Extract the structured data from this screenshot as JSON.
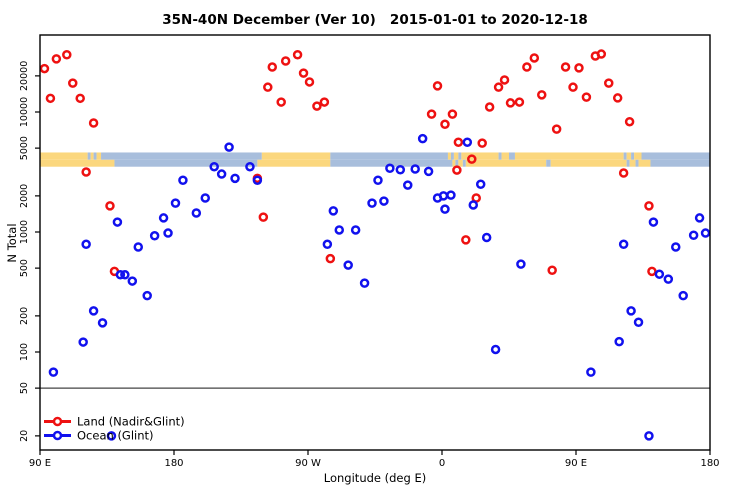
{
  "chart_data": {
    "type": "scatter",
    "title": "35N-40N December (Ver 10)   2015-01-01 to 2020-12-18",
    "xlabel": "Longitude (deg E)",
    "ylabel": "N Total",
    "x_axis": {
      "min": 90,
      "max": 540,
      "ticks": [
        {
          "value": 90,
          "label": "90 E"
        },
        {
          "value": 180,
          "label": "180"
        },
        {
          "value": 270,
          "label": "90 W"
        },
        {
          "value": 360,
          "label": "0"
        },
        {
          "value": 450,
          "label": "90 E"
        },
        {
          "value": 540,
          "label": "180"
        }
      ]
    },
    "y_axis": {
      "scale": "log",
      "ticks": [
        20,
        50,
        100,
        200,
        500,
        1000,
        2000,
        5000,
        10000,
        20000
      ],
      "min": 15,
      "max": 44000
    },
    "threshold_value": 50,
    "grid": "off",
    "legend_position": "bottom-left-inside",
    "legend": [
      {
        "label": "Land (Nadir&Glint)",
        "color": "#ee1111"
      },
      {
        "label": "Ocean (Glint)",
        "color": "#1111ee"
      }
    ],
    "map_band": {
      "land_color": "#fbd77e",
      "ocean_color": "#a8bedc",
      "value_top": 4600,
      "value_mid": 4000,
      "value_bottom": 3500,
      "rows": [
        {
          "segments": [
            [
              "L",
              90,
              122
            ],
            [
              "O",
              122,
              124
            ],
            [
              "L",
              124,
              126
            ],
            [
              "O",
              126,
              128
            ],
            [
              "L",
              128,
              131
            ],
            [
              "O",
              131,
              239
            ],
            [
              "L",
              239,
              285
            ],
            [
              "O",
              285,
              364
            ],
            [
              "L",
              364,
              366
            ],
            [
              "O",
              366,
              368
            ],
            [
              "L",
              368,
              371
            ],
            [
              "O",
              371,
              373
            ],
            [
              "L",
              373,
              398
            ],
            [
              "O",
              398,
              400
            ],
            [
              "L",
              400,
              405
            ],
            [
              "O",
              405,
              409
            ],
            [
              "L",
              409,
              482
            ],
            [
              "O",
              482,
              484
            ],
            [
              "L",
              484,
              487
            ],
            [
              "O",
              487,
              489
            ],
            [
              "L",
              489,
              494
            ],
            [
              "O",
              494,
              540
            ]
          ]
        },
        {
          "segments": [
            [
              "L",
              90,
              140
            ],
            [
              "O",
              140,
              236
            ],
            [
              "L",
              236,
              285
            ],
            [
              "O",
              285,
              367
            ],
            [
              "L",
              367,
              369
            ],
            [
              "O",
              369,
              371
            ],
            [
              "L",
              371,
              374
            ],
            [
              "O",
              374,
              376
            ],
            [
              "L",
              376,
              430
            ],
            [
              "O",
              430,
              433
            ],
            [
              "L",
              433,
              484
            ],
            [
              "O",
              484,
              486
            ],
            [
              "L",
              486,
              490
            ],
            [
              "O",
              490,
              492
            ],
            [
              "L",
              492,
              500
            ],
            [
              "O",
              500,
              540
            ]
          ]
        }
      ]
    },
    "series": [
      {
        "name": "Land (Nadir&Glint)",
        "color": "#ee1111",
        "points": [
          [
            93,
            23000
          ],
          [
            101,
            27700
          ],
          [
            108,
            30000
          ],
          [
            112,
            17400
          ],
          [
            97,
            13000
          ],
          [
            117,
            13000
          ],
          [
            126,
            8100
          ],
          [
            121,
            3160
          ],
          [
            137,
            1650
          ],
          [
            140,
            470
          ],
          [
            243,
            16100
          ],
          [
            246,
            23700
          ],
          [
            255,
            26600
          ],
          [
            263,
            30000
          ],
          [
            267,
            21100
          ],
          [
            271,
            17800
          ],
          [
            252,
            12100
          ],
          [
            276,
            11200
          ],
          [
            281,
            12100
          ],
          [
            236,
            2800
          ],
          [
            240,
            1330
          ],
          [
            285,
            600
          ],
          [
            353,
            9600
          ],
          [
            357,
            16500
          ],
          [
            362,
            7900
          ],
          [
            367,
            9600
          ],
          [
            370,
            3280
          ],
          [
            371,
            5600
          ],
          [
            376,
            860
          ],
          [
            380,
            4050
          ],
          [
            383,
            1920
          ],
          [
            387,
            5500
          ],
          [
            392,
            11000
          ],
          [
            398,
            16100
          ],
          [
            402,
            18500
          ],
          [
            406,
            11900
          ],
          [
            412,
            12100
          ],
          [
            417,
            23700
          ],
          [
            422,
            28200
          ],
          [
            427,
            13900
          ],
          [
            434,
            480
          ],
          [
            437,
            7200
          ],
          [
            443,
            23700
          ],
          [
            448,
            16100
          ],
          [
            452,
            23300
          ],
          [
            457,
            13300
          ],
          [
            463,
            29300
          ],
          [
            467,
            30400
          ],
          [
            472,
            17400
          ],
          [
            478,
            13100
          ],
          [
            482,
            3100
          ],
          [
            486,
            8300
          ],
          [
            499,
            1650
          ],
          [
            501,
            470
          ]
        ]
      },
      {
        "name": "Ocean (Glint)",
        "color": "#1111ee",
        "points": [
          [
            99,
            68
          ],
          [
            119,
            121
          ],
          [
            121,
            790
          ],
          [
            126,
            220
          ],
          [
            132,
            175
          ],
          [
            138,
            20
          ],
          [
            142,
            1210
          ],
          [
            144,
            440
          ],
          [
            147,
            440
          ],
          [
            152,
            390
          ],
          [
            156,
            750
          ],
          [
            162,
            295
          ],
          [
            167,
            930
          ],
          [
            173,
            1310
          ],
          [
            176,
            980
          ],
          [
            181,
            1740
          ],
          [
            186,
            2700
          ],
          [
            195,
            1440
          ],
          [
            201,
            1920
          ],
          [
            207,
            3500
          ],
          [
            212,
            3040
          ],
          [
            217,
            5100
          ],
          [
            221,
            2800
          ],
          [
            231,
            3500
          ],
          [
            236,
            2700
          ],
          [
            283,
            790
          ],
          [
            287,
            1500
          ],
          [
            291,
            1040
          ],
          [
            297,
            530
          ],
          [
            302,
            1040
          ],
          [
            308,
            375
          ],
          [
            313,
            1740
          ],
          [
            317,
            2700
          ],
          [
            321,
            1810
          ],
          [
            325,
            3400
          ],
          [
            332,
            3300
          ],
          [
            337,
            2460
          ],
          [
            342,
            3350
          ],
          [
            347,
            6000
          ],
          [
            351,
            3200
          ],
          [
            357,
            1920
          ],
          [
            361,
            2000
          ],
          [
            362,
            1550
          ],
          [
            366,
            2030
          ],
          [
            377,
            5600
          ],
          [
            381,
            1680
          ],
          [
            386,
            2500
          ],
          [
            390,
            900
          ],
          [
            396,
            105
          ],
          [
            413,
            540
          ],
          [
            460,
            68
          ],
          [
            479,
            122
          ],
          [
            482,
            790
          ],
          [
            487,
            220
          ],
          [
            492,
            177
          ],
          [
            499,
            20
          ],
          [
            502,
            1210
          ],
          [
            506,
            445
          ],
          [
            512,
            405
          ],
          [
            517,
            750
          ],
          [
            522,
            295
          ],
          [
            529,
            940
          ],
          [
            533,
            1310
          ],
          [
            537,
            980
          ]
        ]
      }
    ]
  }
}
